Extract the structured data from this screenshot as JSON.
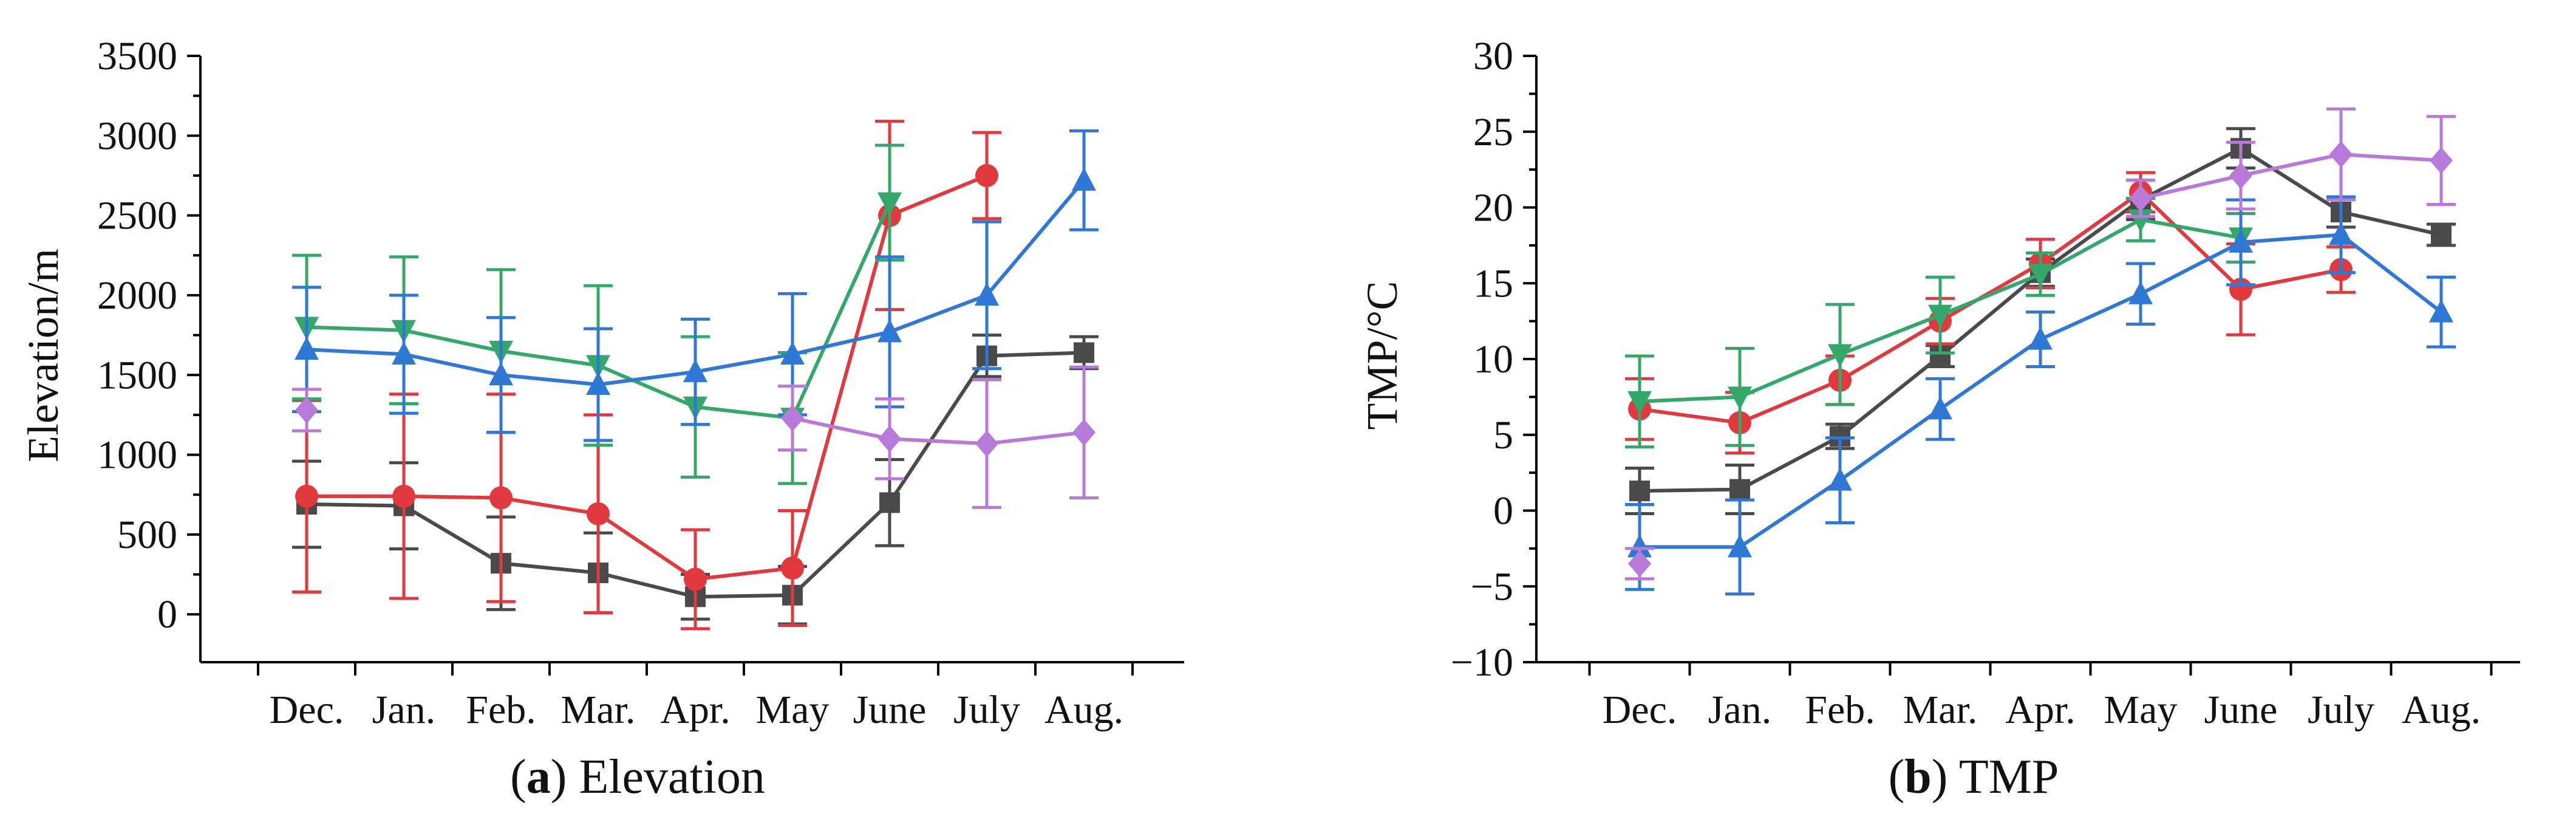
{
  "chart_data": [
    {
      "type": "line",
      "panel": "a",
      "caption_prefix": "(",
      "caption_letter": "a",
      "caption_suffix": ") Elevation",
      "ylabel": "Elevation/m",
      "xlabel": "",
      "categories": [
        "Dec.",
        "Jan.",
        "Feb.",
        "Mar.",
        "Apr.",
        "May",
        "June",
        "July",
        "Aug."
      ],
      "ylim": [
        -300,
        3500
      ],
      "yticks": [
        0,
        500,
        1000,
        1500,
        2000,
        2500,
        3000,
        3500
      ],
      "yticklabels": [
        "0",
        "500",
        "1000",
        "1500",
        "2000",
        "2500",
        "3000",
        "3500"
      ],
      "series": [
        {
          "name": "gray",
          "color": "#4a4a4a",
          "marker": "square",
          "values": [
            690,
            680,
            320,
            260,
            110,
            120,
            700,
            1620,
            1640
          ],
          "errors": [
            270,
            270,
            290,
            250,
            140,
            180,
            270,
            130,
            100
          ]
        },
        {
          "name": "red",
          "color": "#e0393e",
          "marker": "circle",
          "values": [
            740,
            740,
            730,
            630,
            220,
            290,
            2500,
            2750,
            null
          ],
          "errors": [
            600,
            640,
            650,
            620,
            310,
            360,
            590,
            270,
            null
          ]
        },
        {
          "name": "green",
          "color": "#34a86a",
          "marker": "triangle-down",
          "values": [
            1800,
            1780,
            1650,
            1560,
            1300,
            1230,
            2580,
            null,
            null
          ],
          "errors": [
            450,
            460,
            510,
            500,
            440,
            410,
            360,
            null,
            null
          ]
        },
        {
          "name": "blue",
          "color": "#2f78d6",
          "marker": "triangle-up",
          "values": [
            1660,
            1630,
            1500,
            1440,
            1520,
            1630,
            1770,
            2000,
            2720
          ],
          "errors": [
            390,
            370,
            360,
            350,
            330,
            380,
            470,
            460,
            310
          ]
        },
        {
          "name": "purple",
          "color": "#b77ad9",
          "marker": "diamond",
          "values": [
            1280,
            null,
            null,
            null,
            null,
            1230,
            1100,
            1070,
            1140
          ],
          "errors": [
            130,
            null,
            null,
            null,
            null,
            200,
            250,
            400,
            410
          ]
        }
      ]
    },
    {
      "type": "line",
      "panel": "b",
      "caption_prefix": "(",
      "caption_letter": "b",
      "caption_suffix": ") TMP",
      "ylabel": "TMP/°C",
      "xlabel": "",
      "categories": [
        "Dec.",
        "Jan.",
        "Feb.",
        "Mar.",
        "Apr.",
        "May",
        "June",
        "July",
        "Aug."
      ],
      "ylim": [
        -10,
        30
      ],
      "yticks": [
        -10,
        -5,
        0,
        5,
        10,
        15,
        20,
        25,
        30
      ],
      "yticklabels": [
        "−10",
        "−5",
        "0",
        "5",
        "10",
        "15",
        "20",
        "25",
        "30"
      ],
      "series": [
        {
          "name": "gray",
          "color": "#4a4a4a",
          "marker": "square",
          "values": [
            1.3,
            1.4,
            4.9,
            10.2,
            15.7,
            20.5,
            23.9,
            19.7,
            18.2
          ],
          "errors": [
            1.5,
            1.6,
            0.8,
            0.7,
            0.9,
            1.3,
            1.3,
            1.0,
            0.7
          ]
        },
        {
          "name": "red",
          "color": "#e0393e",
          "marker": "circle",
          "values": [
            6.7,
            5.8,
            8.6,
            12.5,
            16.3,
            21.0,
            14.6,
            15.9,
            null
          ],
          "errors": [
            2.0,
            2.0,
            1.6,
            1.5,
            1.6,
            1.3,
            3.0,
            1.5,
            null
          ]
        },
        {
          "name": "green",
          "color": "#34a86a",
          "marker": "triangle-down",
          "values": [
            7.2,
            7.5,
            10.3,
            12.9,
            15.6,
            19.2,
            18.0,
            null,
            null
          ],
          "errors": [
            3.0,
            3.2,
            3.3,
            2.5,
            1.4,
            1.4,
            1.6,
            null,
            null
          ]
        },
        {
          "name": "blue",
          "color": "#2f78d6",
          "marker": "triangle-up",
          "values": [
            -2.4,
            -2.4,
            2.0,
            6.7,
            11.3,
            14.3,
            17.7,
            18.2,
            13.1
          ],
          "errors": [
            2.8,
            3.1,
            2.8,
            2.0,
            1.8,
            2.0,
            2.8,
            2.5,
            2.3
          ]
        },
        {
          "name": "purple",
          "color": "#b77ad9",
          "marker": "diamond",
          "values": [
            -3.5,
            null,
            null,
            null,
            null,
            20.6,
            22.1,
            23.5,
            23.1
          ],
          "errors": [
            1.0,
            null,
            null,
            null,
            null,
            1.2,
            2.2,
            3.0,
            2.9
          ]
        }
      ]
    }
  ]
}
